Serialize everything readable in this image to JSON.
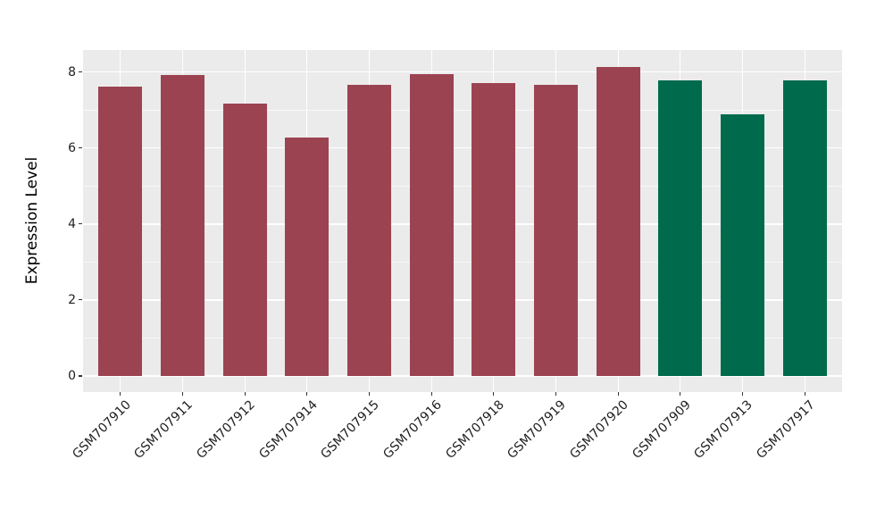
{
  "chart_data": {
    "type": "bar",
    "title": "",
    "ylabel": "Expression Level",
    "xlabel": "",
    "categories": [
      "GSM707910",
      "GSM707911",
      "GSM707912",
      "GSM707914",
      "GSM707915",
      "GSM707916",
      "GSM707918",
      "GSM707919",
      "GSM707920",
      "GSM707909",
      "GSM707913",
      "GSM707917"
    ],
    "values": [
      7.62,
      7.92,
      7.16,
      6.28,
      7.66,
      7.94,
      7.72,
      7.66,
      8.14,
      7.77,
      6.89,
      7.77
    ],
    "groups": [
      "groupA",
      "groupA",
      "groupA",
      "groupA",
      "groupA",
      "groupA",
      "groupA",
      "groupA",
      "groupA",
      "groupB",
      "groupB",
      "groupB"
    ],
    "palette": {
      "groupA": "#9C4351",
      "groupB": "#006B4C"
    },
    "yticks": [
      0,
      2,
      4,
      6,
      8
    ],
    "minor_yticks": [
      1,
      3,
      5,
      7
    ],
    "ylim": [
      -0.41,
      8.56
    ],
    "bar_width_fraction": 0.7,
    "grid": "on",
    "legend": "none",
    "panel_background": "#EBEBEB",
    "gridline_color": "#FFFFFF",
    "tick_color": "#333333",
    "text_color": "#1F1F1F"
  }
}
